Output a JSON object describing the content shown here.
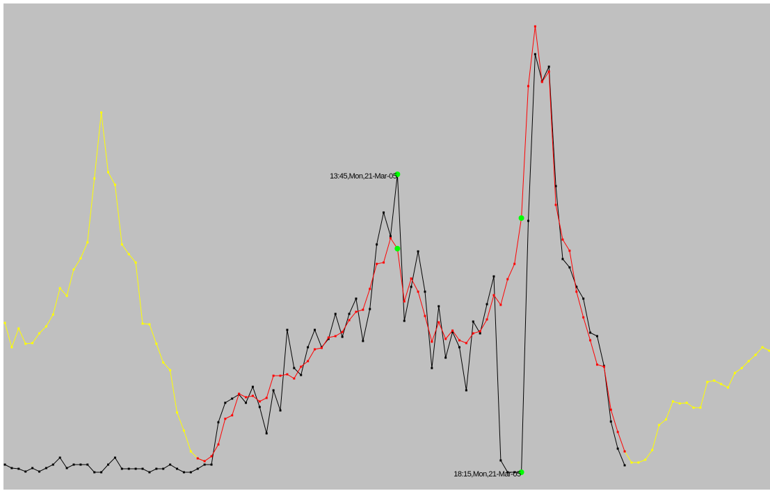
{
  "chart_data": {
    "type": "line",
    "xlim": [
      0,
      111
    ],
    "ylim": [
      0,
      700
    ],
    "series": [
      {
        "color": "#ffff00",
        "values": [
          240,
          205,
          232,
          210,
          211,
          225,
          235,
          252,
          290,
          279,
          317,
          333,
          356,
          448,
          543,
          457,
          439,
          353,
          339,
          327,
          239,
          238,
          210,
          183,
          172,
          111,
          85,
          55,
          45,
          41,
          null,
          null,
          null,
          null,
          null,
          null,
          null,
          null,
          null,
          null,
          null,
          null,
          null,
          null,
          null,
          null,
          null,
          null,
          null,
          null,
          null,
          null,
          null,
          null,
          null,
          null,
          null,
          null,
          null,
          null,
          null,
          null,
          null,
          null,
          null,
          null,
          null,
          null,
          null,
          null,
          null,
          null,
          null,
          null,
          null,
          null,
          null,
          null,
          null,
          null,
          null,
          null,
          null,
          null,
          null,
          null,
          null,
          null,
          null,
          null,
          55,
          39,
          39,
          43,
          57,
          93,
          101,
          127,
          124,
          125,
          118,
          118,
          155,
          157,
          152,
          147,
          168,
          175,
          185,
          194,
          205,
          200
        ]
      },
      {
        "color": "#000000",
        "values": [
          36,
          31,
          30,
          26,
          31,
          26,
          31,
          36,
          46,
          31,
          36,
          36,
          36,
          25,
          25,
          36,
          46,
          30,
          30,
          30,
          30,
          25,
          30,
          30,
          36,
          30,
          25,
          25,
          30,
          36,
          36,
          97,
          125,
          131,
          137,
          125,
          148,
          119,
          81,
          143,
          114,
          230,
          175,
          165,
          205,
          230,
          205,
          217,
          253,
          220,
          253,
          275,
          214,
          260,
          353,
          399,
          365,
          454,
          243,
          292,
          343,
          285,
          175,
          264,
          190,
          227,
          205,
          143,
          242,
          225,
          267,
          307,
          42,
          25,
          25,
          25,
          387,
          627,
          588,
          609,
          437,
          332,
          320,
          292,
          275,
          226,
          221,
          178,
          98,
          59,
          35,
          null,
          null,
          null,
          null,
          null,
          null,
          null,
          null,
          null,
          null,
          null,
          null,
          null,
          null,
          null,
          null,
          null,
          null,
          null,
          null,
          null
        ]
      },
      {
        "color": "#ff0000",
        "values": [
          null,
          null,
          null,
          null,
          null,
          null,
          null,
          null,
          null,
          null,
          null,
          null,
          null,
          null,
          null,
          null,
          null,
          null,
          null,
          null,
          null,
          null,
          null,
          null,
          null,
          null,
          null,
          null,
          45,
          41,
          48,
          65,
          102,
          107,
          138,
          133,
          135,
          127,
          132,
          164,
          164,
          166,
          160,
          177,
          185,
          202,
          204,
          219,
          221,
          227,
          244,
          256,
          259,
          289,
          325,
          327,
          362,
          347,
          271,
          304,
          285,
          250,
          213,
          241,
          217,
          229,
          215,
          211,
          225,
          228,
          245,
          280,
          266,
          303,
          325,
          391,
          581,
          667,
          587,
          602,
          410,
          360,
          344,
          285,
          248,
          215,
          180,
          177,
          115,
          83,
          55,
          null,
          null,
          null,
          null,
          null,
          null,
          null,
          null,
          null,
          null,
          null,
          null,
          null,
          null,
          null,
          null,
          null,
          null,
          null,
          null,
          null
        ]
      }
    ],
    "marker_color": "#00ff00",
    "annotations": [
      {
        "text": "13:45,Mon,21-Mar-05",
        "x": 57
      },
      {
        "text": "18:15,Mon,21-Mar-05",
        "x": 75
      }
    ]
  }
}
